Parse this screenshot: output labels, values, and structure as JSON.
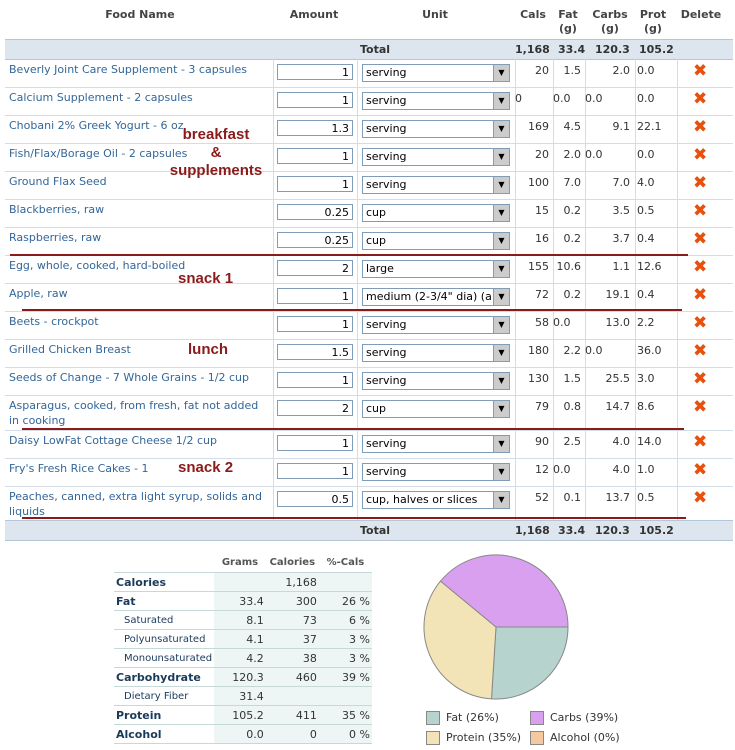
{
  "header": {
    "food_name": "Food Name",
    "amount": "Amount",
    "unit": "Unit",
    "cals": "Cals",
    "fat": "Fat",
    "fat_unit": "(g)",
    "carbs": "Carbs",
    "carbs_unit": "(g)",
    "prot": "Prot",
    "prot_unit": "(g)",
    "delete": "Delete"
  },
  "totals": {
    "label": "Total",
    "cals": "1,168",
    "fat": "33.4",
    "carbs": "120.3",
    "prot": "105.2"
  },
  "rows": [
    {
      "name": "Beverly Joint Care Supplement - 3 capsules",
      "amount": "1",
      "unit": "serving",
      "cals": "20",
      "fat": "1.5",
      "carbs": "2.0",
      "prot": "0.0"
    },
    {
      "name": "Calcium Supplement - 2 capsules",
      "amount": "1",
      "unit": "serving",
      "cals": "0",
      "fat": "0.0",
      "carbs": "0.0",
      "prot": "0.0"
    },
    {
      "name": "Chobani 2% Greek Yogurt - 6 oz",
      "amount": "1.3",
      "unit": "serving",
      "cals": "169",
      "fat": "4.5",
      "carbs": "9.1",
      "prot": "22.1"
    },
    {
      "name": "Fish/Flax/Borage Oil - 2 capsules",
      "amount": "1",
      "unit": "serving",
      "cals": "20",
      "fat": "2.0",
      "carbs": "0.0",
      "prot": "0.0"
    },
    {
      "name": "Ground Flax Seed",
      "amount": "1",
      "unit": "serving",
      "cals": "100",
      "fat": "7.0",
      "carbs": "7.0",
      "prot": "4.0"
    },
    {
      "name": "Blackberries, raw",
      "amount": "0.25",
      "unit": "cup",
      "cals": "15",
      "fat": "0.2",
      "carbs": "3.5",
      "prot": "0.5"
    },
    {
      "name": "Raspberries, raw",
      "amount": "0.25",
      "unit": "cup",
      "cals": "16",
      "fat": "0.2",
      "carbs": "3.7",
      "prot": "0.4"
    },
    {
      "name": "Egg, whole, cooked, hard-boiled",
      "amount": "2",
      "unit": "large",
      "cals": "155",
      "fat": "10.6",
      "carbs": "1.1",
      "prot": "12.6"
    },
    {
      "name": "Apple, raw",
      "amount": "1",
      "unit": "medium (2-3/4\" dia) (a",
      "cals": "72",
      "fat": "0.2",
      "carbs": "19.1",
      "prot": "0.4"
    },
    {
      "name": "Beets - crockpot",
      "amount": "1",
      "unit": "serving",
      "cals": "58",
      "fat": "0.0",
      "carbs": "13.0",
      "prot": "2.2"
    },
    {
      "name": "Grilled Chicken Breast",
      "amount": "1.5",
      "unit": "serving",
      "cals": "180",
      "fat": "2.2",
      "carbs": "0.0",
      "prot": "36.0"
    },
    {
      "name": "Seeds of Change - 7 Whole Grains - 1/2 cup",
      "amount": "1",
      "unit": "serving",
      "cals": "130",
      "fat": "1.5",
      "carbs": "25.5",
      "prot": "3.0"
    },
    {
      "name": "Asparagus, cooked, from fresh, fat not added in cooking",
      "amount": "2",
      "unit": "cup",
      "cals": "79",
      "fat": "0.8",
      "carbs": "14.7",
      "prot": "8.6"
    },
    {
      "name": "Daisy LowFat Cottage Cheese 1/2 cup",
      "amount": "1",
      "unit": "serving",
      "cals": "90",
      "fat": "2.5",
      "carbs": "4.0",
      "prot": "14.0"
    },
    {
      "name": "Fry's Fresh Rice Cakes - 1",
      "amount": "1",
      "unit": "serving",
      "cals": "12",
      "fat": "0.0",
      "carbs": "4.0",
      "prot": "1.0"
    },
    {
      "name": "Peaches, canned, extra light syrup, solids and liquids",
      "amount": "0.5",
      "unit": "cup, halves or slices",
      "cals": "52",
      "fat": "0.1",
      "carbs": "13.7",
      "prot": "0.5"
    }
  ],
  "annotations": {
    "breakfast": "breakfast",
    "amp": "&",
    "supplements": "supplements",
    "snack1": "snack 1",
    "lunch": "lunch",
    "snack2": "snack 2"
  },
  "summary": {
    "headers": {
      "grams": "Grams",
      "calories": "Calories",
      "pct": "%-Cals"
    },
    "rows": [
      {
        "label": "Calories",
        "grams": "",
        "calories": "1,168",
        "pct": ""
      },
      {
        "label": "Fat",
        "grams": "33.4",
        "calories": "300",
        "pct": "26 %"
      },
      {
        "label": "Saturated",
        "grams": "8.1",
        "calories": "73",
        "pct": "6 %"
      },
      {
        "label": "Polyunsaturated",
        "grams": "4.1",
        "calories": "37",
        "pct": "3 %"
      },
      {
        "label": "Monounsaturated",
        "grams": "4.2",
        "calories": "38",
        "pct": "3 %"
      },
      {
        "label": "Carbohydrate",
        "grams": "120.3",
        "calories": "460",
        "pct": "39 %"
      },
      {
        "label": "Dietary Fiber",
        "grams": "31.4",
        "calories": "",
        "pct": ""
      },
      {
        "label": "Protein",
        "grams": "105.2",
        "calories": "411",
        "pct": "35 %"
      },
      {
        "label": "Alcohol",
        "grams": "0.0",
        "calories": "0",
        "pct": "0 %"
      }
    ]
  },
  "chart_data": {
    "type": "pie",
    "categories": [
      "Fat",
      "Carbs",
      "Protein",
      "Alcohol"
    ],
    "values": [
      26,
      39,
      35,
      0
    ],
    "legend": [
      "Fat (26%)",
      "Carbs (39%)",
      "Protein (35%)",
      "Alcohol (0%)"
    ],
    "colors": [
      "#b6d3cd",
      "#d9a0f0",
      "#f3e4b7",
      "#f4c9a0"
    ],
    "legend_placement": "bottom"
  }
}
